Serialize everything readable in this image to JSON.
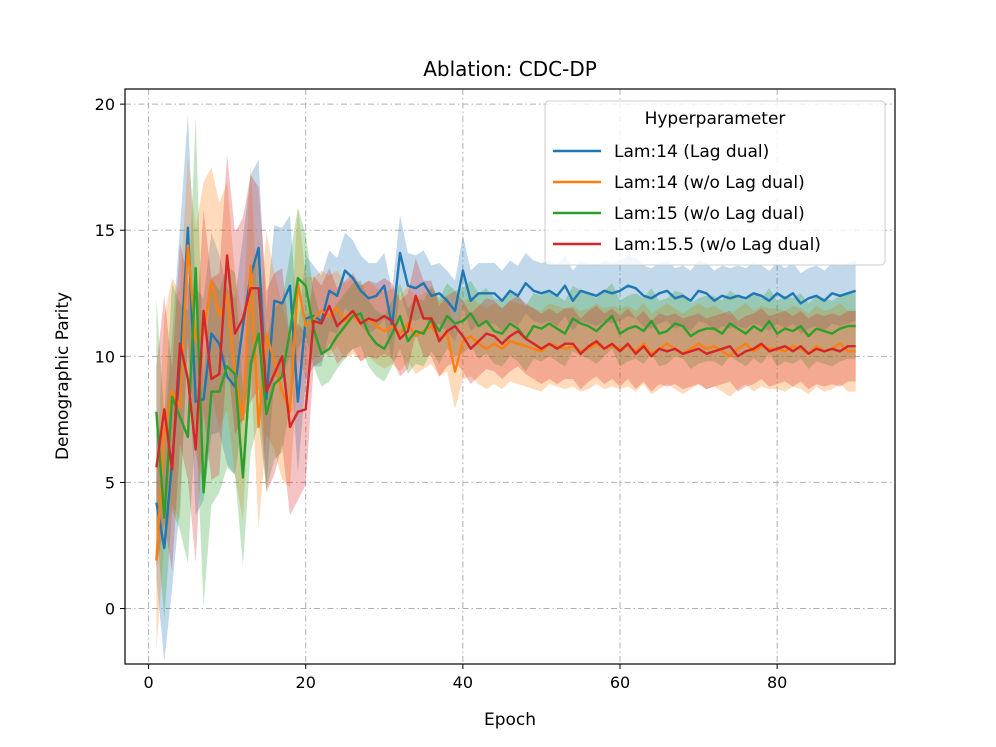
{
  "chart_data": {
    "type": "line",
    "title": "Ablation: CDC-DP",
    "xlabel": "Epoch",
    "ylabel": "Demographic Parity",
    "xlim": [
      -3,
      95
    ],
    "ylim": [
      -2.2,
      20.6
    ],
    "xticks": [
      0,
      20,
      40,
      60,
      80
    ],
    "yticks": [
      0,
      5,
      10,
      15,
      20
    ],
    "grid": true,
    "legend": {
      "title": "Hyperparameter",
      "position": "top-right"
    },
    "x_range": [
      1,
      90
    ],
    "series": [
      {
        "name": "Lam:14 (Lag dual)",
        "color": "#1f77b4",
        "values": [
          4.2,
          2.4,
          5.8,
          9.6,
          15.1,
          8.2,
          8.3,
          10.9,
          10.5,
          9.2,
          8.8,
          11.2,
          13.2,
          14.3,
          8.3,
          12.2,
          12.1,
          12.8,
          8.2,
          11.5,
          11.6,
          11.4,
          12.6,
          12.4,
          13.4,
          13.1,
          12.6,
          12.3,
          12.4,
          12.8,
          11.2,
          14.1,
          12.8,
          12.7,
          12.9,
          12.4,
          12.5,
          12.2,
          11.8,
          13.4,
          12.2,
          12.5,
          12.5,
          12.5,
          12.2,
          12.6,
          12.4,
          12.9,
          12.6,
          12.5,
          12.6,
          12.4,
          12.8,
          12.2,
          12.6,
          12.5,
          12.4,
          12.6,
          12.5,
          12.6,
          12.8,
          12.7,
          12.4,
          12.3,
          12.5,
          12.6,
          12.3,
          12.4,
          12.2,
          12.6,
          12.5,
          12.2,
          12.4,
          12.3,
          12.4,
          12.3,
          12.5,
          12.4,
          12.2,
          12.5,
          12.3,
          12.5,
          12.1,
          12.3,
          12.4,
          12.2,
          12.5,
          12.4,
          12.5,
          12.6
        ],
        "band": [
          3.0,
          4.5,
          5.0,
          5.5,
          4.5,
          4.5,
          4.0,
          4.0,
          3.5,
          3.5,
          3.5,
          3.5,
          4.0,
          3.5,
          3.5,
          3.0,
          3.0,
          2.8,
          2.8,
          2.5,
          2.0,
          1.8,
          1.6,
          1.5,
          1.5,
          1.5,
          1.4,
          1.4,
          1.3,
          1.3,
          1.4,
          1.5,
          1.3,
          1.3,
          1.3,
          1.2,
          1.2,
          1.2,
          1.2,
          1.4,
          1.2,
          1.2,
          1.2,
          1.2,
          1.2,
          1.2,
          1.2,
          1.2,
          1.2,
          1.2,
          1.2,
          1.2,
          1.2,
          1.2,
          1.2,
          1.2,
          1.2,
          1.2,
          1.2,
          1.2,
          1.2,
          1.2,
          1.2,
          1.2,
          1.2,
          1.2,
          1.2,
          1.2,
          1.2,
          1.2,
          1.2,
          1.2,
          1.2,
          1.2,
          1.2,
          1.2,
          1.2,
          1.2,
          1.2,
          1.2,
          1.2,
          1.2,
          1.2,
          1.2,
          1.2,
          1.2,
          1.2,
          1.2,
          1.2,
          1.2
        ]
      },
      {
        "name": "Lam:14 (w/o Lag dual)",
        "color": "#ff7f0e",
        "values": [
          1.9,
          7.1,
          8.6,
          8.0,
          14.4,
          10.6,
          10.9,
          13.0,
          11.6,
          12.4,
          9.3,
          7.5,
          13.6,
          7.2,
          10.9,
          9.8,
          8.6,
          7.8,
          12.9,
          11.2,
          11.5,
          11.8,
          11.6,
          11.9,
          11.4,
          11.6,
          11.3,
          11.5,
          11.2,
          11.0,
          11.2,
          10.9,
          11.3,
          10.8,
          11.0,
          11.2,
          10.7,
          10.9,
          9.4,
          10.6,
          10.8,
          10.5,
          10.3,
          10.5,
          10.3,
          10.6,
          10.5,
          10.4,
          10.3,
          10.2,
          10.5,
          10.4,
          10.3,
          10.4,
          10.2,
          10.3,
          10.5,
          10.3,
          10.4,
          10.3,
          10.4,
          10.2,
          10.5,
          10.1,
          10.3,
          10.5,
          10.3,
          10.1,
          10.3,
          10.5,
          10.3,
          10.4,
          10.2,
          10.0,
          10.3,
          10.5,
          10.2,
          10.4,
          10.3,
          10.3,
          10.2,
          10.4,
          10.3,
          10.1,
          10.4,
          10.2,
          10.3,
          10.5,
          10.2,
          10.2
        ],
        "band": [
          3.5,
          4.5,
          4.5,
          4.5,
          3.5,
          4.5,
          6.0,
          4.5,
          4.5,
          4.5,
          4.0,
          4.0,
          4.0,
          4.0,
          4.0,
          3.5,
          3.5,
          3.0,
          3.0,
          2.0,
          1.6,
          1.6,
          1.6,
          1.5,
          1.5,
          1.5,
          1.5,
          1.5,
          1.5,
          1.5,
          1.5,
          1.5,
          1.5,
          1.5,
          1.5,
          1.5,
          1.5,
          1.5,
          1.5,
          1.5,
          1.6,
          1.6,
          1.6,
          1.6,
          1.6,
          1.6,
          1.6,
          1.6,
          1.6,
          1.6,
          1.6,
          1.6,
          1.6,
          1.6,
          1.6,
          1.6,
          1.6,
          1.6,
          1.6,
          1.6,
          1.6,
          1.6,
          1.6,
          1.6,
          1.6,
          1.6,
          1.6,
          1.6,
          1.6,
          1.6,
          1.6,
          1.6,
          1.6,
          1.6,
          1.6,
          1.6,
          1.6,
          1.6,
          1.6,
          1.6,
          1.6,
          1.6,
          1.6,
          1.6,
          1.6,
          1.6,
          1.6,
          1.6,
          1.6,
          1.6
        ]
      },
      {
        "name": "Lam:15 (w/o Lag dual)",
        "color": "#2ca02c",
        "values": [
          7.8,
          3.6,
          8.4,
          7.6,
          6.8,
          13.5,
          4.6,
          8.6,
          8.6,
          9.6,
          9.3,
          5.2,
          9.7,
          10.9,
          7.7,
          8.9,
          9.2,
          11.0,
          13.1,
          12.8,
          11.1,
          10.1,
          10.3,
          10.8,
          11.2,
          11.6,
          11.7,
          10.9,
          10.5,
          10.3,
          10.9,
          11.6,
          10.6,
          11.0,
          10.9,
          11.5,
          11.0,
          11.6,
          11.3,
          11.4,
          11.7,
          11.2,
          11.4,
          11.0,
          10.9,
          11.3,
          11.1,
          10.7,
          11.2,
          11.1,
          11.3,
          11.1,
          10.9,
          11.5,
          11.3,
          11.2,
          11.0,
          11.3,
          11.6,
          10.9,
          11.1,
          11.2,
          11.0,
          11.4,
          10.9,
          11.0,
          11.3,
          11.2,
          10.8,
          11.0,
          11.1,
          11.1,
          10.9,
          11.3,
          11.1,
          10.9,
          11.2,
          11.0,
          11.4,
          10.9,
          11.1,
          11.0,
          11.2,
          10.8,
          11.1,
          11.0,
          10.9,
          11.1,
          11.2,
          11.2
        ],
        "band": [
          4.5,
          4.0,
          4.5,
          4.5,
          5.0,
          6.0,
          4.5,
          4.5,
          4.0,
          4.0,
          4.0,
          3.5,
          3.5,
          3.5,
          3.0,
          3.0,
          3.0,
          3.0,
          2.8,
          2.0,
          1.5,
          1.3,
          1.3,
          1.3,
          1.3,
          1.3,
          1.3,
          1.3,
          1.3,
          1.3,
          1.3,
          1.3,
          1.3,
          1.3,
          1.3,
          1.3,
          1.3,
          1.3,
          1.3,
          1.3,
          1.3,
          1.3,
          1.3,
          1.3,
          1.3,
          1.3,
          1.3,
          1.3,
          1.3,
          1.3,
          1.3,
          1.3,
          1.3,
          1.3,
          1.3,
          1.3,
          1.3,
          1.3,
          1.3,
          1.3,
          1.3,
          1.3,
          1.3,
          1.3,
          1.3,
          1.3,
          1.3,
          1.3,
          1.3,
          1.3,
          1.3,
          1.3,
          1.3,
          1.3,
          1.3,
          1.3,
          1.3,
          1.3,
          1.3,
          1.3,
          1.3,
          1.3,
          1.3,
          1.3,
          1.3,
          1.3,
          1.3,
          1.3,
          1.3,
          1.3
        ]
      },
      {
        "name": "Lam:15.5 (w/o Lag dual)",
        "color": "#d62728",
        "values": [
          5.6,
          7.9,
          5.5,
          10.5,
          9.1,
          6.3,
          11.8,
          9.1,
          9.3,
          14.0,
          10.9,
          11.5,
          12.7,
          12.7,
          8.6,
          9.3,
          10.0,
          7.2,
          7.8,
          7.9,
          11.4,
          11.3,
          12.0,
          11.2,
          11.5,
          11.8,
          11.3,
          11.5,
          11.4,
          11.6,
          11.4,
          10.7,
          11.0,
          12.4,
          11.5,
          11.5,
          10.6,
          11.0,
          11.2,
          10.8,
          10.3,
          10.6,
          10.9,
          10.8,
          10.5,
          10.8,
          11.0,
          10.7,
          10.5,
          10.3,
          10.5,
          10.3,
          10.5,
          10.5,
          10.1,
          10.4,
          10.6,
          10.3,
          10.5,
          10.2,
          10.5,
          10.1,
          10.4,
          10.0,
          10.3,
          10.2,
          10.3,
          10.1,
          10.2,
          10.3,
          10.1,
          10.2,
          10.3,
          10.4,
          10.0,
          10.2,
          10.3,
          10.5,
          10.2,
          10.3,
          10.4,
          10.2,
          10.4,
          10.1,
          10.3,
          10.2,
          10.3,
          10.2,
          10.4,
          10.4
        ],
        "band": [
          4.0,
          4.5,
          4.0,
          4.0,
          4.0,
          4.5,
          4.0,
          4.0,
          4.0,
          4.0,
          4.0,
          4.0,
          4.5,
          4.0,
          4.0,
          4.0,
          3.5,
          3.5,
          3.5,
          3.0,
          1.8,
          1.5,
          1.5,
          1.5,
          1.5,
          1.5,
          1.5,
          1.5,
          1.5,
          1.5,
          1.5,
          1.5,
          1.5,
          1.5,
          1.5,
          1.5,
          1.4,
          1.4,
          1.4,
          1.4,
          1.4,
          1.4,
          1.4,
          1.4,
          1.4,
          1.4,
          1.4,
          1.4,
          1.4,
          1.4,
          1.4,
          1.4,
          1.4,
          1.4,
          1.4,
          1.4,
          1.4,
          1.4,
          1.4,
          1.4,
          1.4,
          1.4,
          1.4,
          1.4,
          1.4,
          1.4,
          1.4,
          1.4,
          1.4,
          1.4,
          1.4,
          1.4,
          1.4,
          1.4,
          1.4,
          1.4,
          1.4,
          1.4,
          1.4,
          1.4,
          1.4,
          1.4,
          1.4,
          1.4,
          1.4,
          1.4,
          1.4,
          1.4,
          1.4,
          1.4
        ]
      }
    ]
  }
}
